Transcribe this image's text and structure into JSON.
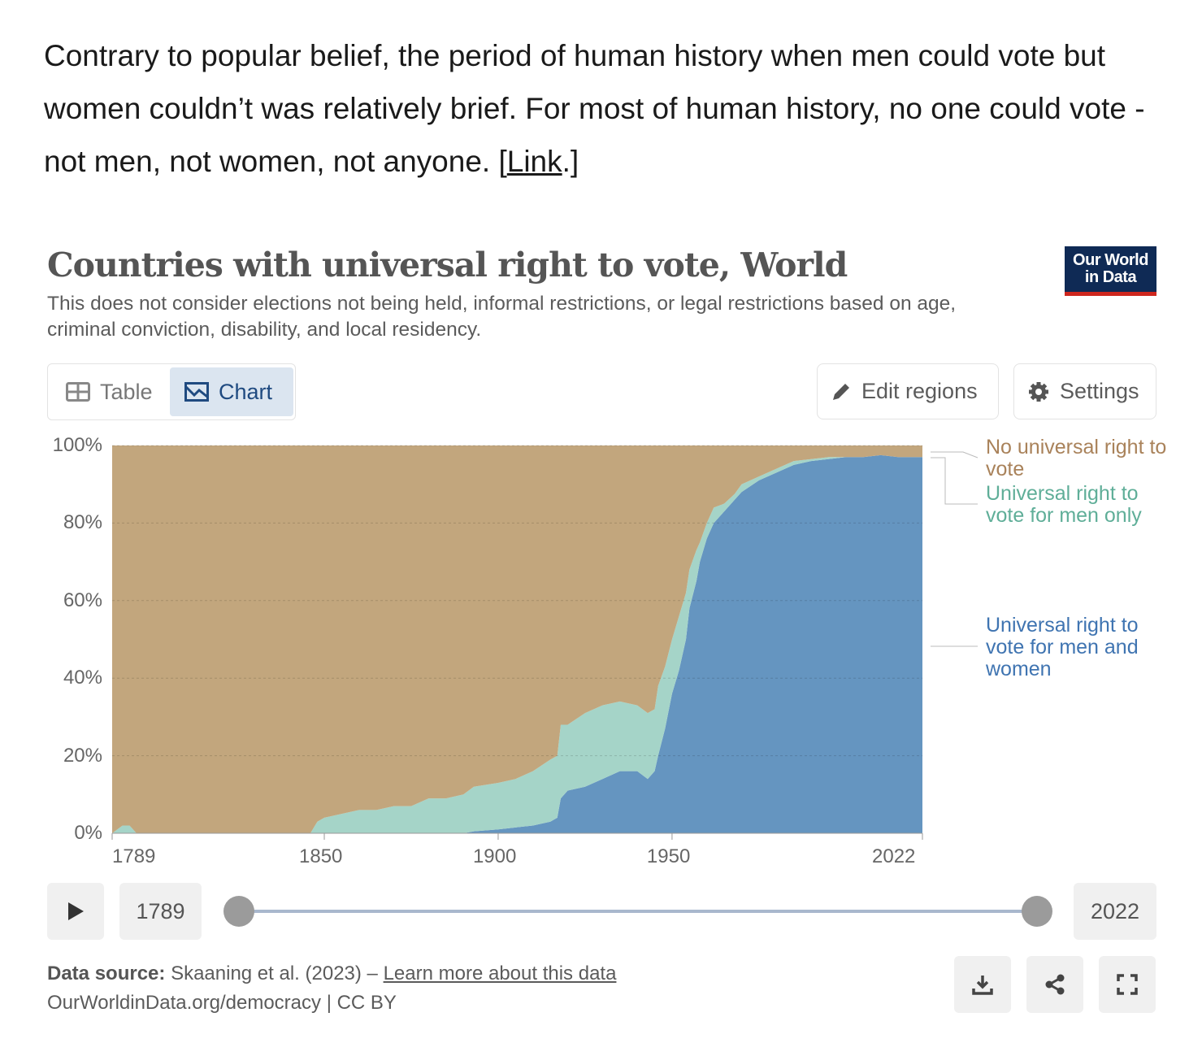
{
  "intro": {
    "text": "Contrary to popular belief, the period of human history when men could vote but women couldn’t was relatively brief. For most of human history, no one could vote - not men, not women, not anyone. [",
    "link": "Link",
    "after": ".]"
  },
  "header": {
    "title": "Countries with universal right to vote, World",
    "subtitle": "This does not consider elections not being held, informal restrictions, or legal restrictions based on age, criminal conviction, disability, and local residency.",
    "logo": "Our World in Data"
  },
  "toolbar": {
    "table": "Table",
    "chart": "Chart",
    "edit_regions": "Edit regions",
    "settings": "Settings"
  },
  "timeline": {
    "start": "1789",
    "end": "2022"
  },
  "footer": {
    "source_label": "Data source:",
    "source": "Skaaning et al. (2023) – ",
    "learn_more": "Learn more about this data",
    "url": "OurWorldinData.org/democracy | CC BY"
  },
  "colors": {
    "none": "#c2a67d",
    "men": "#a5d4c8",
    "both": "#6595c0"
  },
  "chart_data": {
    "type": "area",
    "stacked": true,
    "title": "Countries with universal right to vote, World",
    "xlim": [
      1789,
      2022
    ],
    "ylim": [
      0,
      100
    ],
    "x_ticks": [
      "1789",
      "1850",
      "1900",
      "1950",
      "2022"
    ],
    "y_ticks": [
      "0%",
      "20%",
      "40%",
      "60%",
      "80%",
      "100%"
    ],
    "grid": true,
    "legend_placement": "right",
    "x": [
      1789,
      1792,
      1794,
      1796,
      1840,
      1846,
      1848,
      1850,
      1855,
      1860,
      1865,
      1870,
      1875,
      1880,
      1885,
      1890,
      1893,
      1900,
      1905,
      1910,
      1915,
      1917,
      1918,
      1920,
      1925,
      1930,
      1935,
      1940,
      1943,
      1945,
      1946,
      1948,
      1950,
      1952,
      1954,
      1955,
      1957,
      1958,
      1960,
      1962,
      1965,
      1968,
      1970,
      1975,
      1980,
      1985,
      1990,
      1995,
      2000,
      2005,
      2010,
      2015,
      2022
    ],
    "series": [
      {
        "name": "Universal right to vote for men and women",
        "values": [
          0,
          0,
          0,
          0,
          0,
          0,
          0,
          0,
          0,
          0,
          0,
          0,
          0,
          0,
          0,
          0,
          0.5,
          1,
          1.5,
          2,
          3,
          4,
          9,
          11,
          12,
          14,
          16,
          16,
          14,
          16,
          20,
          27,
          36,
          42,
          50,
          58,
          65,
          70,
          76,
          80,
          83,
          86,
          88,
          91,
          93,
          95,
          96,
          96.5,
          97,
          97,
          97.5,
          97,
          97
        ]
      },
      {
        "name": "Universal right to vote for men only",
        "values": [
          0,
          2,
          2,
          0,
          0,
          0,
          3,
          4,
          5,
          6,
          6,
          7,
          7,
          9,
          9,
          10,
          11.5,
          12,
          12.5,
          14,
          16,
          16,
          19,
          17,
          19,
          19,
          18,
          17,
          17,
          16,
          18,
          16,
          14,
          14,
          12,
          10,
          8,
          5,
          4,
          4,
          2,
          1.5,
          2,
          1,
          1,
          1,
          0.5,
          0.5,
          0,
          0,
          0,
          0,
          0
        ]
      },
      {
        "name": "No universal right to vote",
        "values": [
          100,
          98,
          98,
          100,
          100,
          100,
          97,
          96,
          95,
          94,
          94,
          93,
          93,
          91,
          91,
          90,
          88,
          87,
          86,
          84,
          81,
          80,
          72,
          72,
          69,
          67,
          66,
          67,
          69,
          68,
          62,
          57,
          50,
          44,
          38,
          32,
          27,
          25,
          20,
          16,
          15,
          12.5,
          10,
          8,
          6,
          4,
          3.5,
          3,
          3,
          3,
          2.5,
          3,
          3
        ]
      }
    ]
  },
  "legend": {
    "none": "No universal right to vote",
    "men": "Universal right to vote for men only",
    "both": "Universal right to vote for men and women"
  }
}
